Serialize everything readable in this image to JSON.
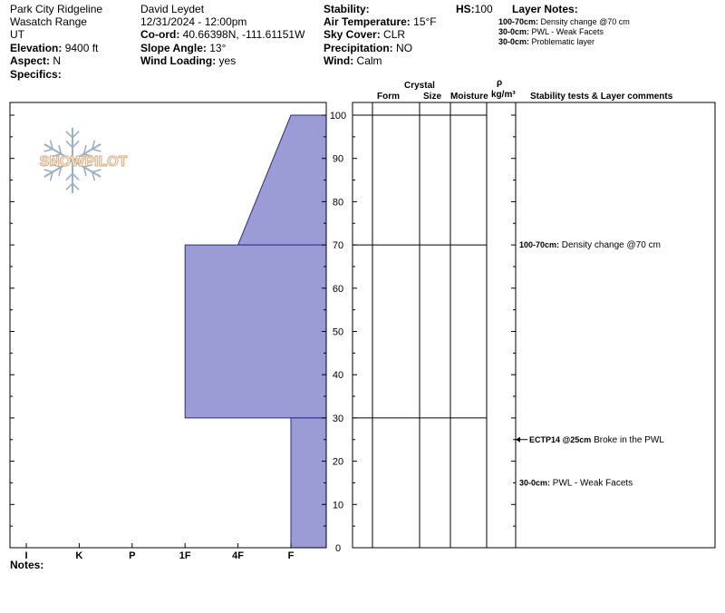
{
  "header": {
    "location": "Park City Ridgeline",
    "range": "Wasatch Range",
    "state": "UT",
    "elevation_label": "Elevation:",
    "elevation_value": " 9400 ft",
    "aspect_label": "Aspect:",
    "aspect_value": " N",
    "specifics_label": "Specifics:",
    "observer": "David Leydet",
    "datetime": "12/31/2024 - 12:00pm",
    "coord_label": "Co-ord:",
    "coord_value": " 40.66398N, -111.61151W",
    "slope_label": "Slope Angle:",
    "slope_value": " 13°",
    "wind_loading_label": "Wind Loading:",
    "wind_loading_value": " yes",
    "stability_label": "Stability:",
    "air_temp_label": "Air Temperature:",
    "air_temp_value": " 15°F",
    "sky_label": "Sky Cover:",
    "sky_value": " CLR",
    "precip_label": "Precipitation:",
    "precip_value": " NO",
    "wind_label": "Wind:",
    "wind_value": "  Calm",
    "hs_label": "HS:",
    "hs_value": "100",
    "layer_notes_label": "Layer Notes:",
    "layer_notes": [
      {
        "range": "100-70cm:",
        "text": " Density change @70 cm"
      },
      {
        "range": "30-0cm:",
        "text": " PWL - Weak Facets"
      },
      {
        "range": "30-0cm:",
        "text": " Problematic layer"
      }
    ],
    "notes_label": "Notes:"
  },
  "logo_text": "SNOWPILOT",
  "columns": {
    "crystal": "Crystal",
    "form": "Form",
    "size": "Size",
    "moisture": "Moisture",
    "rho": "ρ",
    "density": "kg/m³",
    "comments": "Stability tests & Layer comments"
  },
  "comments": [
    {
      "depth": 70,
      "bold": "100-70cm:",
      "text": " Density change @70 cm",
      "arrow": false
    },
    {
      "depth": 25,
      "bold": "ECTP14 @25cm",
      "text": " Broke in the PWL",
      "arrow": true
    },
    {
      "depth": 15,
      "bold": "30-0cm:",
      "text": " PWL - Weak Facets",
      "arrow": false
    }
  ],
  "colors": {
    "fill": "#9b9bd6",
    "stroke": "#2a2a9a",
    "logo": "#e0b48a",
    "snowflake": "#9ab0c8"
  },
  "chart_data": {
    "type": "area",
    "title": "",
    "xlabel": "",
    "ylabel": "",
    "x_categories": [
      "I",
      "K",
      "P",
      "1F",
      "4F",
      "F"
    ],
    "ylim": [
      0,
      100
    ],
    "y_ticks": [
      0,
      10,
      20,
      30,
      40,
      50,
      60,
      70,
      80,
      90,
      100
    ],
    "hardness_profile": [
      {
        "top": 100,
        "bottom": 70,
        "hardness_top": "F",
        "hardness_bottom": "4F"
      },
      {
        "top": 70,
        "bottom": 30,
        "hardness_top": "1F",
        "hardness_bottom": "1F"
      },
      {
        "top": 30,
        "bottom": 0,
        "hardness_top": "F",
        "hardness_bottom": "F"
      }
    ],
    "layer_boundaries": [
      100,
      70,
      30
    ],
    "grid": false
  }
}
